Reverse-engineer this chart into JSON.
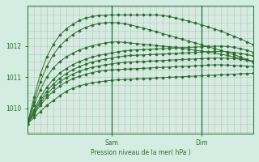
{
  "title": "Pression niveau de la mer( hPa )",
  "ylabel_ticks": [
    1010,
    1011,
    1012
  ],
  "ylim": [
    1009.2,
    1013.3
  ],
  "xlim": [
    0,
    35
  ],
  "bg_color": "#d4ede3",
  "plot_bg_color": "#d4ede3",
  "line_color": "#2d6e2d",
  "marker_color": "#2d6e2d",
  "grid_h_color": "#a8ccbc",
  "grid_v_color": "#e8aaaa",
  "sam_tick_x": 13,
  "dim_tick_x": 27,
  "series": [
    [
      1009.5,
      1009.7,
      1009.9,
      1010.1,
      1010.25,
      1010.4,
      1010.55,
      1010.65,
      1010.72,
      1010.78,
      1010.82,
      1010.85,
      1010.88,
      1010.9,
      1010.92,
      1010.93,
      1010.94,
      1010.95,
      1010.96,
      1010.97,
      1010.98,
      1010.99,
      1011.0,
      1011.01,
      1011.02,
      1011.03,
      1011.04,
      1011.05,
      1011.06,
      1011.07,
      1011.08,
      1011.09,
      1011.1,
      1011.11,
      1011.12,
      1011.13
    ],
    [
      1009.5,
      1009.8,
      1010.1,
      1010.35,
      1010.55,
      1010.72,
      1010.85,
      1010.95,
      1011.03,
      1011.1,
      1011.15,
      1011.19,
      1011.22,
      1011.24,
      1011.25,
      1011.26,
      1011.27,
      1011.28,
      1011.29,
      1011.3,
      1011.31,
      1011.32,
      1011.33,
      1011.34,
      1011.35,
      1011.36,
      1011.37,
      1011.38,
      1011.39,
      1011.4,
      1011.4,
      1011.39,
      1011.38,
      1011.37,
      1011.36,
      1011.35
    ],
    [
      1009.5,
      1009.85,
      1010.18,
      1010.45,
      1010.67,
      1010.85,
      1010.98,
      1011.1,
      1011.19,
      1011.26,
      1011.32,
      1011.36,
      1011.4,
      1011.43,
      1011.46,
      1011.48,
      1011.49,
      1011.5,
      1011.51,
      1011.52,
      1011.53,
      1011.54,
      1011.55,
      1011.56,
      1011.57,
      1011.58,
      1011.59,
      1011.6,
      1011.61,
      1011.62,
      1011.62,
      1011.61,
      1011.6,
      1011.58,
      1011.55,
      1011.52
    ],
    [
      1009.5,
      1009.9,
      1010.25,
      1010.55,
      1010.78,
      1010.97,
      1011.12,
      1011.24,
      1011.34,
      1011.42,
      1011.49,
      1011.54,
      1011.58,
      1011.62,
      1011.65,
      1011.68,
      1011.7,
      1011.71,
      1011.72,
      1011.73,
      1011.74,
      1011.75,
      1011.76,
      1011.77,
      1011.78,
      1011.79,
      1011.8,
      1011.81,
      1011.82,
      1011.83,
      1011.83,
      1011.82,
      1011.8,
      1011.77,
      1011.73,
      1011.68
    ],
    [
      1009.5,
      1009.95,
      1010.35,
      1010.68,
      1010.93,
      1011.13,
      1011.28,
      1011.4,
      1011.5,
      1011.58,
      1011.65,
      1011.7,
      1011.74,
      1011.78,
      1011.82,
      1011.85,
      1011.87,
      1011.88,
      1011.89,
      1011.9,
      1011.91,
      1011.92,
      1011.93,
      1011.94,
      1011.95,
      1011.96,
      1011.97,
      1011.98,
      1011.99,
      1012.0,
      1012.0,
      1011.99,
      1011.96,
      1011.92,
      1011.87,
      1011.8
    ],
    [
      1009.5,
      1010.1,
      1010.6,
      1011.0,
      1011.3,
      1011.5,
      1011.65,
      1011.77,
      1011.87,
      1011.95,
      1012.01,
      1012.06,
      1012.1,
      1012.13,
      1012.14,
      1012.12,
      1012.1,
      1012.08,
      1012.06,
      1012.04,
      1012.02,
      1012.0,
      1011.98,
      1011.96,
      1011.93,
      1011.9,
      1011.87,
      1011.84,
      1011.81,
      1011.78,
      1011.74,
      1011.7,
      1011.65,
      1011.6,
      1011.55,
      1011.5
    ],
    [
      1009.5,
      1010.2,
      1010.85,
      1011.35,
      1011.72,
      1012.0,
      1012.2,
      1012.37,
      1012.5,
      1012.6,
      1012.67,
      1012.72,
      1012.75,
      1012.76,
      1012.75,
      1012.72,
      1012.68,
      1012.63,
      1012.58,
      1012.52,
      1012.46,
      1012.4,
      1012.34,
      1012.28,
      1012.22,
      1012.16,
      1012.1,
      1012.04,
      1011.98,
      1011.92,
      1011.86,
      1011.8,
      1011.73,
      1011.65,
      1011.57,
      1011.49
    ],
    [
      1009.5,
      1010.35,
      1011.1,
      1011.65,
      1012.05,
      1012.35,
      1012.55,
      1012.7,
      1012.82,
      1012.9,
      1012.95,
      1012.98,
      1012.99,
      1013.0,
      1013.0,
      1013.0,
      1013.0,
      1013.0,
      1013.0,
      1013.0,
      1013.0,
      1012.98,
      1012.95,
      1012.9,
      1012.85,
      1012.8,
      1012.74,
      1012.68,
      1012.62,
      1012.55,
      1012.48,
      1012.4,
      1012.32,
      1012.23,
      1012.14,
      1012.04
    ]
  ],
  "n_points": 36
}
